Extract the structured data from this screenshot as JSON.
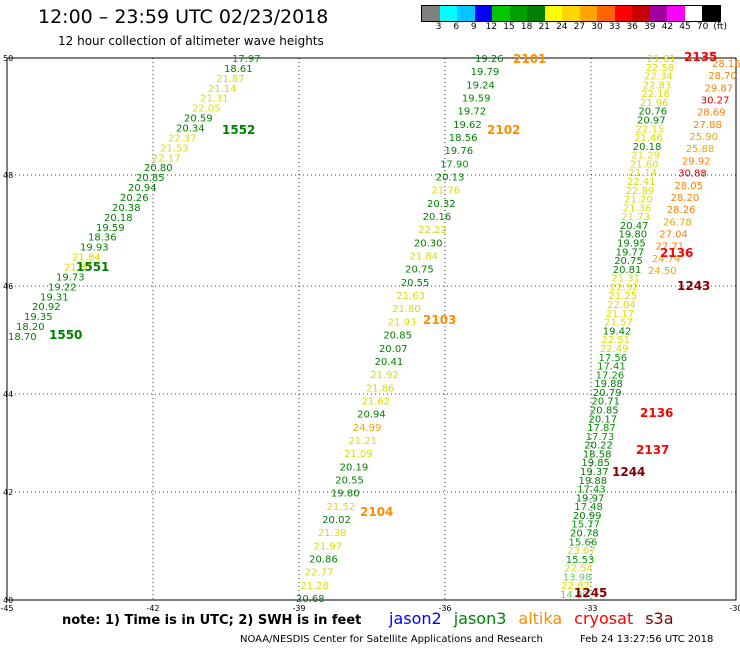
{
  "header": {
    "title": "12:00 – 23:59 UTC 02/23/2018",
    "subtitle": "12 hour collection of altimeter wave heights"
  },
  "scale": {
    "colors": [
      "#808080",
      "#00ffff",
      "#00c8ff",
      "#0000ff",
      "#00c800",
      "#00a000",
      "#008000",
      "#ffff00",
      "#ffd700",
      "#ffa500",
      "#ff6400",
      "#ff0000",
      "#c80000",
      "#a000a0",
      "#ff00ff",
      "#ffffff",
      "#000000"
    ],
    "labels": [
      "3",
      "6",
      "9",
      "12",
      "15",
      "18",
      "21",
      "24",
      "27",
      "30",
      "33",
      "36",
      "39",
      "42",
      "45",
      "70",
      "(ft)"
    ]
  },
  "axes": {
    "lon_ticks": [
      "-45",
      "-42",
      "-39",
      "-36",
      "-33",
      "-30"
    ],
    "lat_ticks": [
      "40",
      "42",
      "44",
      "46",
      "48",
      "50"
    ]
  },
  "passes": [
    {
      "label": "1552",
      "color": "#008000"
    },
    {
      "label": "1551",
      "color": "#008000"
    },
    {
      "label": "1550",
      "color": "#008000"
    },
    {
      "label": "2101",
      "color": "#ff8c00"
    },
    {
      "label": "2102",
      "color": "#ff8c00"
    },
    {
      "label": "2103",
      "color": "#ff8c00"
    },
    {
      "label": "2104",
      "color": "#ff8c00"
    },
    {
      "label": "2135",
      "color": "#ff0000"
    },
    {
      "label": "2136",
      "color": "#ff0000"
    },
    {
      "label": "1243",
      "color": "#800000"
    },
    {
      "label": "2136",
      "color": "#ff0000"
    },
    {
      "label": "2137",
      "color": "#ff0000"
    },
    {
      "label": "1244",
      "color": "#800000"
    },
    {
      "label": "1245",
      "color": "#800000"
    }
  ],
  "tracks": [
    {
      "name": "jason3-1550-1552",
      "values": [
        "17.97",
        "18.61",
        "21.87",
        "21.14",
        "21.31",
        "22.05",
        "20.59",
        "20.34",
        "22.37",
        "21.53",
        "22.17",
        "20.80",
        "20.85",
        "20.94",
        "20.26",
        "20.38",
        "20.18",
        "19.59",
        "18.36",
        "19.93",
        "21.84",
        "21.87",
        "19.73",
        "19.22",
        "19.31",
        "20.92",
        "19.35",
        "18.20",
        "18.70"
      ]
    },
    {
      "name": "altika-2101-2104",
      "values": [
        "19.26",
        "19.79",
        "19.24",
        "19.59",
        "19.72",
        "19.62",
        "18.56",
        "19.76",
        "17.90",
        "20.13",
        "21.76",
        "20.32",
        "20.16",
        "22.22",
        "20.30",
        "21.84",
        "20.75",
        "20.55",
        "21.63",
        "21.80",
        "21.93",
        "20.85",
        "20.07",
        "20.41",
        "21.92",
        "21.86",
        "21.62",
        "20.94",
        "24.99",
        "21.21",
        "21.09",
        "20.19",
        "20.55",
        "19.80",
        "21.52",
        "20.02",
        "21.38",
        "21.97",
        "20.86",
        "22.77",
        "21.28",
        "20.68"
      ]
    },
    {
      "name": "cryosat-2135-2137",
      "values": [
        "21.81",
        "22.58",
        "22.34",
        "22.83",
        "22.16",
        "21.96",
        "20.76",
        "20.97",
        "22.15",
        "21.46",
        "20.18",
        "21.29",
        "21.60",
        "21.14",
        "22.41",
        "22.89",
        "21.20",
        "21.36",
        "21.73",
        "20.47",
        "19.80",
        "19.95",
        "19.77",
        "20.75",
        "20.81",
        "21.31",
        "22.32",
        "21.25",
        "22.04",
        "21.17",
        "21.57",
        "19.42",
        "22.51",
        "22.49",
        "17.56",
        "17.41",
        "17.26",
        "19.88",
        "20.79",
        "20.71",
        "20.85",
        "20.17",
        "17.87",
        "17.73",
        "20.22",
        "18.58",
        "19.85",
        "19.37",
        "19.88",
        "17.43",
        "19.97",
        "17.48",
        "20.99",
        "15.77",
        "20.78",
        "15.66",
        "23.07",
        "15.53",
        "22.54",
        "13.98",
        "22.82",
        "14.80"
      ]
    },
    {
      "name": "s3a-2135-2136",
      "values": [
        "28.16",
        "28.70",
        "29.87",
        "30.27",
        "28.69",
        "27.88",
        "25.90",
        "25.88",
        "29.92",
        "30.88",
        "28.05",
        "28.20",
        "28.26",
        "26.78",
        "27.04",
        "27.71",
        "24.74",
        "24.50"
      ]
    }
  ],
  "footer": {
    "note": "note: 1) Time is in UTC; 2) SWH is in feet",
    "satellites": [
      {
        "label": "jason2",
        "color": "#0000ff"
      },
      {
        "label": "jason3",
        "color": "#008000"
      },
      {
        "label": "altika",
        "color": "#ff8c00"
      },
      {
        "label": "cryosat",
        "color": "#ff0000"
      },
      {
        "label": "s3a",
        "color": "#800000"
      }
    ],
    "credit": "NOAA/NESDIS Center for Satellite Applications and Research",
    "timestamp": "Feb 24 13:27:56 UTC 2018"
  }
}
